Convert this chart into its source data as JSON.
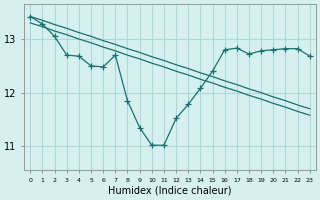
{
  "xlabel": "Humidex (Indice chaleur)",
  "background_color": "#d6f0f0",
  "grid_color": "#b0d8d8",
  "line_color": "#1a7070",
  "x_values": [
    0,
    1,
    2,
    3,
    4,
    5,
    6,
    7,
    8,
    9,
    10,
    11,
    12,
    13,
    14,
    15,
    16,
    17,
    18,
    19,
    20,
    21,
    22,
    23
  ],
  "y_straight1": [
    13.42,
    13.35,
    13.27,
    13.2,
    13.12,
    13.05,
    12.97,
    12.9,
    12.82,
    12.75,
    12.67,
    12.6,
    12.52,
    12.45,
    12.37,
    12.3,
    12.22,
    12.15,
    12.07,
    12.0,
    11.92,
    11.85,
    11.77,
    11.7
  ],
  "y_straight2": [
    13.3,
    13.23,
    13.15,
    13.08,
    13.0,
    12.93,
    12.85,
    12.78,
    12.7,
    12.63,
    12.55,
    12.48,
    12.4,
    12.33,
    12.25,
    12.18,
    12.1,
    12.03,
    11.95,
    11.88,
    11.8,
    11.73,
    11.65,
    11.58
  ],
  "y_zigzag": [
    13.42,
    13.28,
    13.05,
    12.7,
    12.68,
    12.5,
    12.48,
    12.7,
    11.85,
    11.35,
    11.02,
    11.02,
    11.52,
    11.78,
    12.08,
    12.4,
    12.8,
    12.83,
    12.72,
    12.78,
    12.8,
    12.82,
    12.82,
    12.68
  ],
  "ylim": [
    10.55,
    13.65
  ],
  "yticks": [
    11,
    12,
    13
  ],
  "xlim": [
    -0.5,
    23.5
  ]
}
